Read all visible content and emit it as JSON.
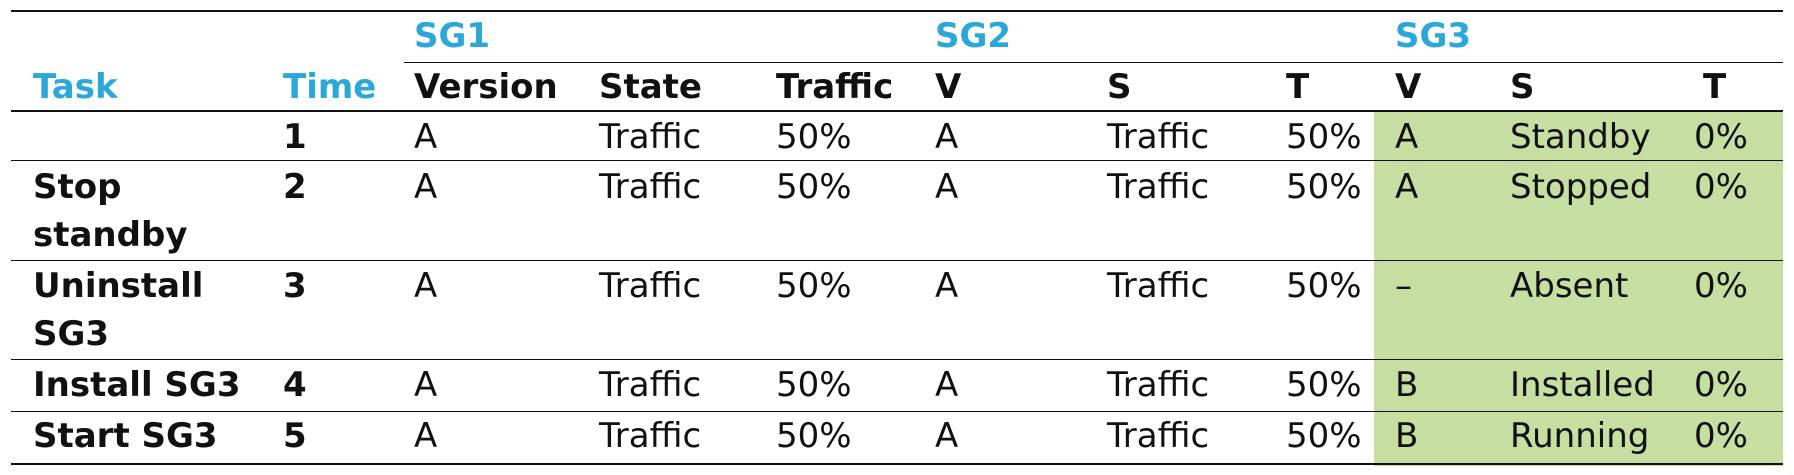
{
  "groups": [
    "SG1",
    "SG2",
    "SG3"
  ],
  "headers": {
    "task": "Task",
    "time": "Time",
    "sg1": [
      "Version",
      "State",
      "Traffic"
    ],
    "sg2": [
      "V",
      "S",
      "T"
    ],
    "sg3": [
      "V",
      "S",
      "T"
    ]
  },
  "rows": [
    {
      "task": [
        "",
        ""
      ],
      "time": "1",
      "sg1": [
        "A",
        "Traffic",
        "50%"
      ],
      "sg2": [
        "A",
        "Traffic",
        "50%"
      ],
      "sg3": [
        "A",
        "Standby",
        "0%"
      ]
    },
    {
      "task": [
        "Stop",
        "standby"
      ],
      "time": "2",
      "sg1": [
        "A",
        "Traffic",
        "50%"
      ],
      "sg2": [
        "A",
        "Traffic",
        "50%"
      ],
      "sg3": [
        "A",
        "Stopped",
        "0%"
      ]
    },
    {
      "task": [
        "Uninstall",
        "SG3"
      ],
      "time": "3",
      "sg1": [
        "A",
        "Traffic",
        "50%"
      ],
      "sg2": [
        "A",
        "Traffic",
        "50%"
      ],
      "sg3": [
        "–",
        "Absent",
        "0%"
      ]
    },
    {
      "task": [
        "Install SG3",
        ""
      ],
      "time": "4",
      "sg1": [
        "A",
        "Traffic",
        "50%"
      ],
      "sg2": [
        "A",
        "Traffic",
        "50%"
      ],
      "sg3": [
        "B",
        "Installed",
        "0%"
      ]
    },
    {
      "task": [
        "Start SG3",
        ""
      ],
      "time": "5",
      "sg1": [
        "A",
        "Traffic",
        "50%"
      ],
      "sg2": [
        "A",
        "Traffic",
        "50%"
      ],
      "sg3": [
        "B",
        "Running",
        "0%"
      ]
    }
  ],
  "colors": {
    "header_blue": "#2ba7da",
    "sg3_highlight": "#c6dea1"
  }
}
